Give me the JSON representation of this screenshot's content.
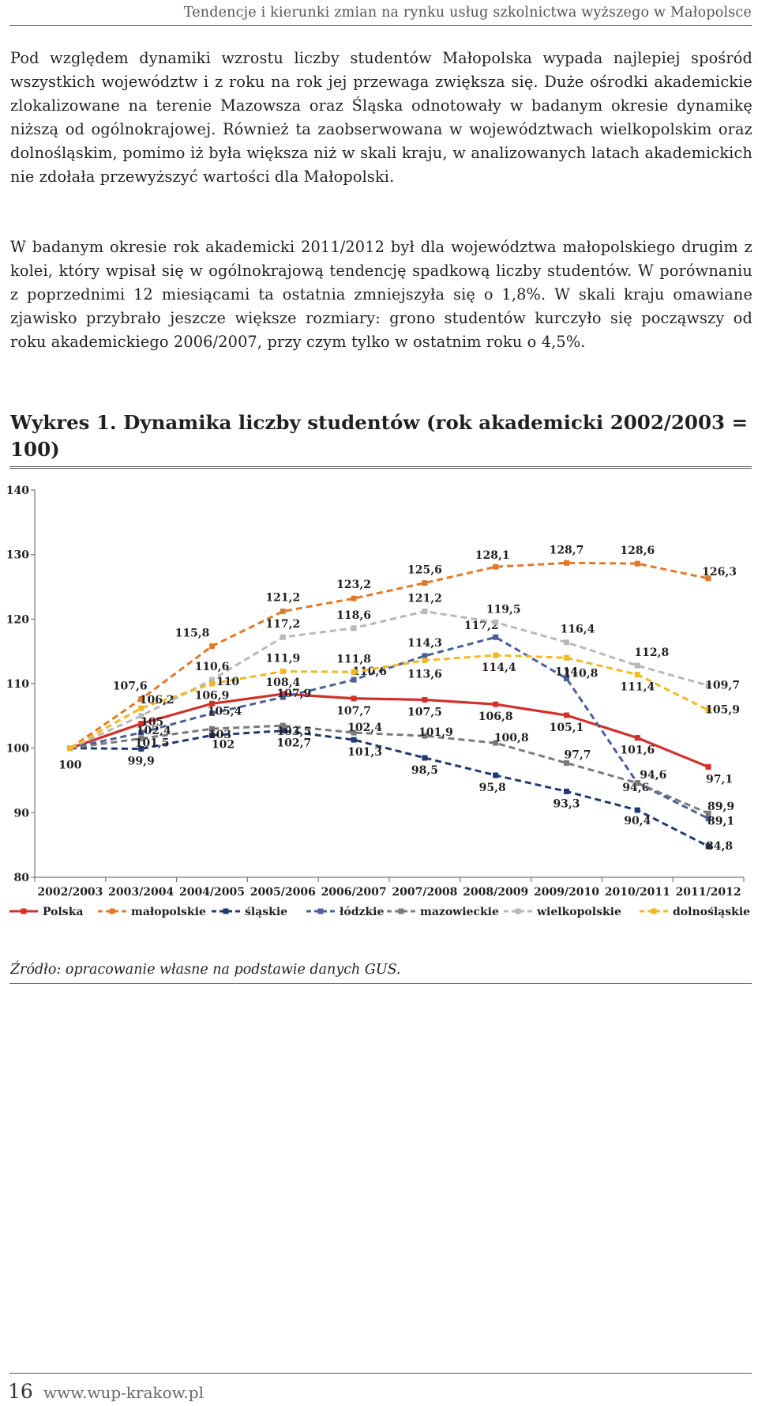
{
  "header": {
    "running_title": "Tendencje i kierunki zmian na rynku usług szkolnictwa wyższego w Małopolsce"
  },
  "paragraphs": [
    "Pod względem dynamiki wzrostu liczby studentów Małopolska wypada najlepiej spośród wszystkich województw i z roku na rok jej przewaga zwiększa się. Duże ośrodki akademickie zlokalizowane na terenie Mazowsza oraz Śląska odnotowały w badanym okresie dynamikę niższą od ogólnokrajowej. Również ta zaobserwowana w województwach wielkopolskim oraz dolnośląskim, pomimo iż była większa niż w skali kraju, w analizowanych latach akademickich nie zdołała przewyższyć wartości dla Małopolski.",
    "W badanym okresie rok akademicki 2011/2012 był dla województwa małopolskiego drugim z kolei, który wpisał się w ogólnokrajową tendencję spadkową liczby studentów. W porównaniu z poprzednimi 12 miesiącami ta ostatnia zmniejszyła się o 1,8%. W skali kraju omawiane zjawisko przybrało jeszcze większe rozmiary: grono studentów kurczyło się począwszy od roku akademickiego 2006/2007, przy czym tylko w ostatnim roku o 4,5%."
  ],
  "figure": {
    "title": "Wykres 1.  Dynamika liczby studentów (rok akademicki 2002/2003 = 100)",
    "source": "Źródło: opracowanie własne na podstawie danych GUS."
  },
  "chart_data": {
    "type": "line",
    "title": "Dynamika liczby studentów (rok akademicki 2002/2003 = 100)",
    "categories": [
      "2002/2003",
      "2003/2004",
      "2004/2005",
      "2005/2006",
      "2006/2007",
      "2007/2008",
      "2008/2009",
      "2009/2010",
      "2010/2011",
      "2011/2012"
    ],
    "ylim": [
      80,
      140
    ],
    "yticks": [
      "80",
      "90",
      "100",
      "110",
      "120",
      "130",
      "140"
    ],
    "legend_position": "bottom",
    "series": [
      {
        "name": "Polska",
        "color": "#d1302b",
        "style": "solid",
        "values": [
          100,
          103.8,
          106.9,
          108.4,
          107.7,
          107.5,
          106.8,
          105.1,
          101.6,
          97.1
        ],
        "labels": [
          "100",
          "",
          "106,9",
          "108,4",
          "107,7",
          "107,5",
          "106,8",
          "105,1",
          "101,6",
          "97,1"
        ]
      },
      {
        "name": "małopolskie",
        "color": "#e07a2a",
        "style": "dashed",
        "values": [
          100,
          107.6,
          115.8,
          121.2,
          123.2,
          125.6,
          128.1,
          128.7,
          128.6,
          126.3
        ],
        "labels": [
          "",
          "107,6",
          "115,8",
          "121,2",
          "123,2",
          "125,6",
          "128,1",
          "128,7",
          "128,6",
          "126,3"
        ]
      },
      {
        "name": "śląskie",
        "color": "#1f3a6e",
        "style": "dashed",
        "values": [
          100,
          99.9,
          102,
          102.7,
          101.3,
          98.5,
          95.8,
          93.3,
          90.4,
          84.8
        ],
        "labels": [
          "",
          "99,9",
          "102",
          "102,7",
          "101,3",
          "98,5",
          "95,8",
          "93,3",
          "90,4",
          "84,8"
        ]
      },
      {
        "name": "łódzkie",
        "color": "#4a5f9a",
        "style": "dashed",
        "values": [
          100,
          102.4,
          105.4,
          107.9,
          110.6,
          114.3,
          117.2,
          110.8,
          94.6,
          89.1
        ],
        "labels": [
          "",
          "102,4",
          "105,4",
          "107,9",
          "110,6",
          "114,3",
          "117,2",
          "110,8",
          "94,6",
          "89,1"
        ]
      },
      {
        "name": "mazowieckie",
        "color": "#7a7a7a",
        "style": "dashed",
        "values": [
          100,
          101.5,
          103,
          103.5,
          102.4,
          101.9,
          100.8,
          97.7,
          94.6,
          89.9
        ],
        "labels": [
          "",
          "101,5",
          "103",
          "103,5",
          "102,4",
          "101,9",
          "100,8",
          "97,7",
          "94,6",
          "89,9"
        ]
      },
      {
        "name": "wielkopolskie",
        "color": "#b8b8b8",
        "style": "dashed",
        "values": [
          100,
          105,
          110.6,
          117.2,
          118.6,
          121.2,
          119.5,
          116.4,
          112.8,
          109.7
        ],
        "labels": [
          "",
          "105",
          "110,6",
          "117,2",
          "118,6",
          "121,2",
          "119,5",
          "116,4",
          "112,8",
          "109,7"
        ]
      },
      {
        "name": "dolnośląskie",
        "color": "#f2b824",
        "style": "dashed",
        "values": [
          100,
          106.2,
          110,
          111.9,
          111.8,
          113.6,
          114.4,
          114,
          111.4,
          105.9
        ],
        "labels": [
          "",
          "106,2",
          "110",
          "111,9",
          "111,8",
          "113,6",
          "114,4",
          "114",
          "111,4",
          "105,9"
        ]
      }
    ]
  },
  "footer": {
    "page_number": "16",
    "website": "www.wup-krakow.pl"
  }
}
